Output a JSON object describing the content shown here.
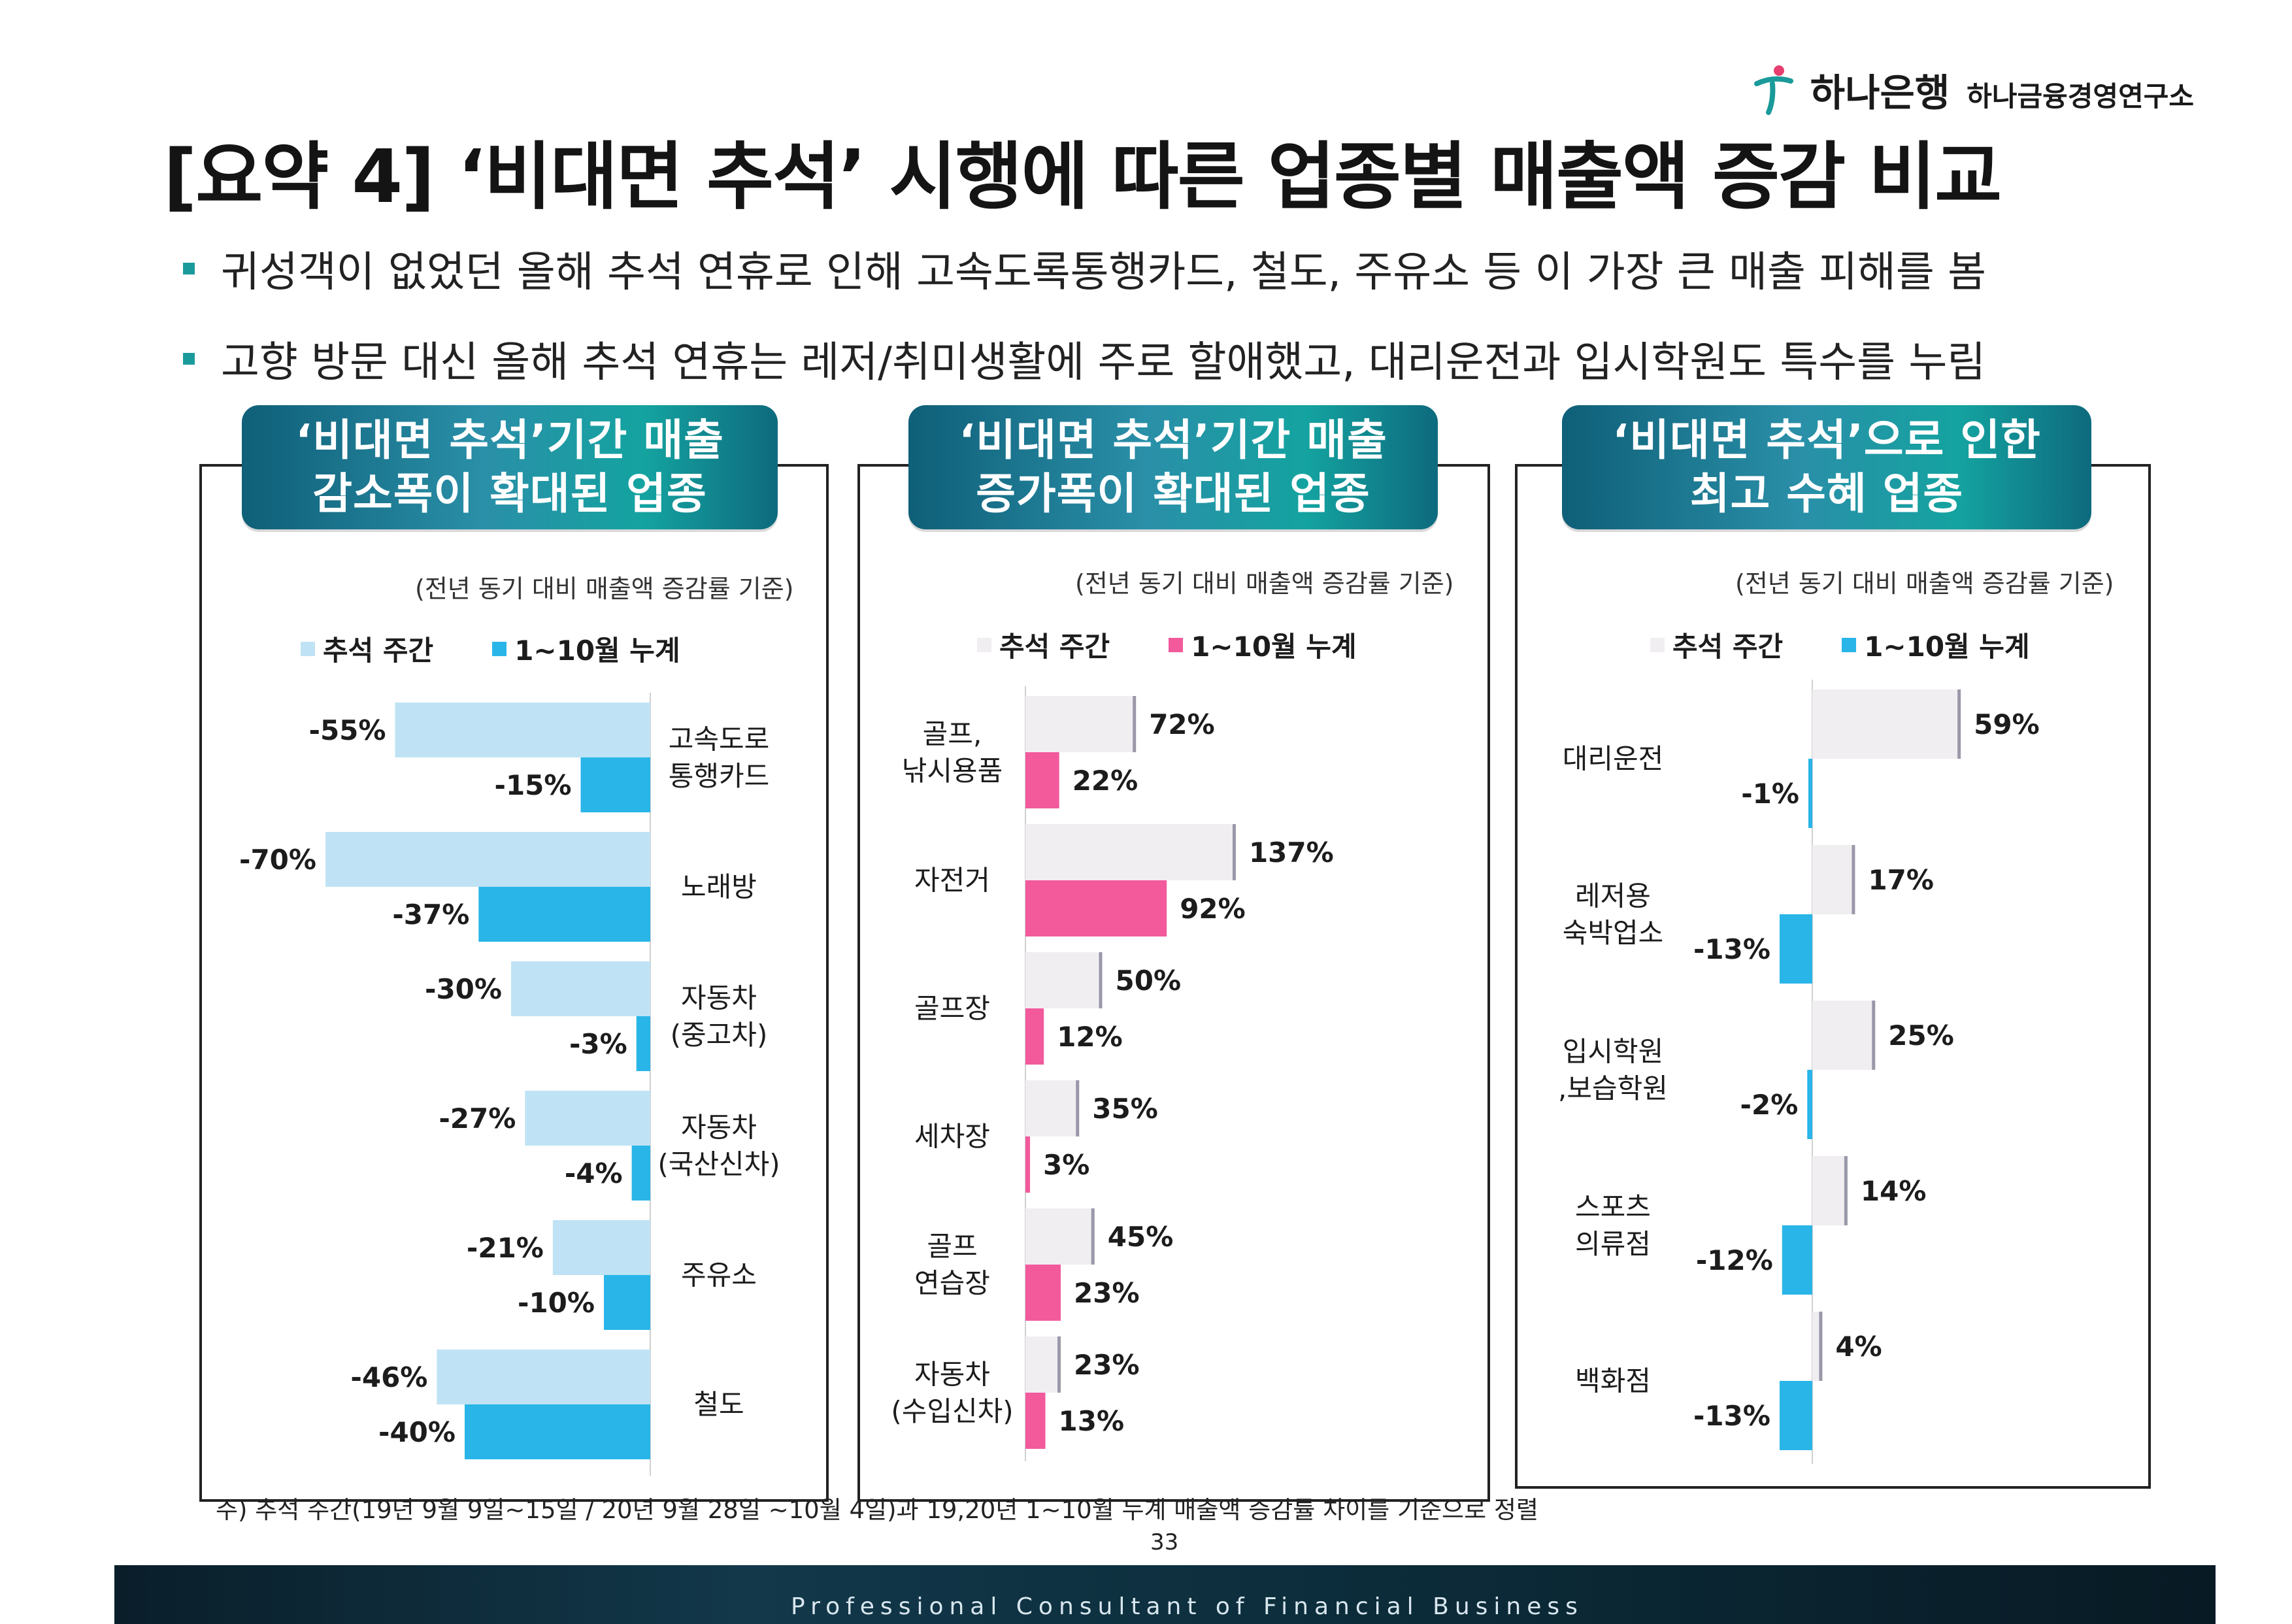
{
  "header": {
    "bank_name": "하나은행",
    "institute_name": "하나금융경영연구소",
    "logo_color": "#e63f6f"
  },
  "title": "[요약 4] ‘비대면 추석’ 시행에 따른 업종별 매출액 증감 비교",
  "bullets": [
    "귀성객이 없었던 올해 추석 연휴로 인해 고속도록통행카드, 철도, 주유소 등 이 가장 큰 매출 피해를 봄",
    "고향 방문 대신 올해 추석 연휴는 레저/취미생활에 주로 할애했고, 대리운전과 입시학원도 특수를 누림"
  ],
  "panels": [
    {
      "title_line1": "‘비대면 추석’기간 매출",
      "title_line2": "감소폭이 확대된 업종",
      "basis": "(전년 동기 대비 매출액 증감률 기준)"
    },
    {
      "title_line1": "‘비대면 추석’기간 매출",
      "title_line2": "증가폭이 확대된 업종",
      "basis": "(전년 동기 대비 매출액 증감률 기준)"
    },
    {
      "title_line1": "‘비대면 추석’으로 인한",
      "title_line2": "최고 수혜 업종",
      "basis": "(전년 동기 대비 매출액 증감률 기준)"
    }
  ],
  "chart_data": [
    {
      "type": "bar",
      "orientation": "horizontal",
      "unit": "%",
      "categories": [
        "고속도로\n통행카드",
        "노래방",
        "자동차\n(중고차)",
        "자동차\n(국산신차)",
        "주유소",
        "철도"
      ],
      "series": [
        {
          "name": "추석 주간",
          "values": [
            -55,
            -70,
            -30,
            -27,
            -21,
            -46
          ],
          "color": "#bfe3f4"
        },
        {
          "name": "1~10월 누계",
          "values": [
            -15,
            -37,
            -3,
            -4,
            -10,
            -40
          ],
          "color": "#29b5e8"
        }
      ]
    },
    {
      "type": "bar",
      "orientation": "horizontal",
      "unit": "%",
      "categories": [
        "골프,\n낚시용품",
        "자전거",
        "골프장",
        "세차장",
        "골프\n연습장",
        "자동차\n(수입신차)"
      ],
      "series": [
        {
          "name": "추석 주간",
          "values": [
            72,
            137,
            50,
            35,
            45,
            23
          ],
          "color": "#f1eef2"
        },
        {
          "name": "1~10월 누계",
          "values": [
            22,
            92,
            12,
            3,
            23,
            13
          ],
          "color": "#f25a9c"
        }
      ]
    },
    {
      "type": "bar",
      "orientation": "horizontal",
      "unit": "%",
      "categories": [
        "대리운전",
        "레저용\n숙박업소",
        "입시학원\n,보습학원",
        "스포츠\n의류점",
        "백화점"
      ],
      "series": [
        {
          "name": "추석 주간",
          "values": [
            59,
            17,
            25,
            14,
            4
          ],
          "color": "#f1eef2"
        },
        {
          "name": "1~10월 누계",
          "values": [
            -1,
            -13,
            -2,
            -12,
            -13
          ],
          "color": "#29b5e8"
        }
      ]
    }
  ],
  "footnote": "주) 추석 주간(19년 9월 9일~15일 / 20년 9월 28일 ~10월 4일)과 19,20년 1~10월 누계 매출액 증감률 차이를 기준으로 정렬",
  "page_number": "33",
  "footer": "Professional Consultant of Financial Business"
}
